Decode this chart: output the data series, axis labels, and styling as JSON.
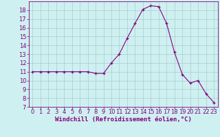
{
  "x": [
    0,
    1,
    2,
    3,
    4,
    5,
    6,
    7,
    8,
    9,
    10,
    11,
    12,
    13,
    14,
    15,
    16,
    17,
    18,
    19,
    20,
    21,
    22,
    23
  ],
  "y": [
    11,
    11,
    11,
    11,
    11,
    11,
    11,
    11,
    10.8,
    10.8,
    12,
    13,
    14.8,
    16.5,
    18.1,
    18.5,
    18.4,
    16.5,
    13.2,
    10.7,
    9.7,
    10,
    8.5,
    7.5
  ],
  "line_color": "#800080",
  "marker": "+",
  "marker_color": "#800080",
  "bg_color": "#cff0f0",
  "grid_color": "#a8cccc",
  "xlabel": "Windchill (Refroidissement éolien,°C)",
  "xlabel_color": "#800080",
  "tick_color": "#800080",
  "xlim": [
    -0.5,
    23.5
  ],
  "ylim": [
    7,
    19
  ],
  "yticks": [
    7,
    8,
    9,
    10,
    11,
    12,
    13,
    14,
    15,
    16,
    17,
    18
  ],
  "xticks": [
    0,
    1,
    2,
    3,
    4,
    5,
    6,
    7,
    8,
    9,
    10,
    11,
    12,
    13,
    14,
    15,
    16,
    17,
    18,
    19,
    20,
    21,
    22,
    23
  ],
  "spine_color": "#800080",
  "xlabel_fontsize": 6.5,
  "tick_fontsize": 6
}
